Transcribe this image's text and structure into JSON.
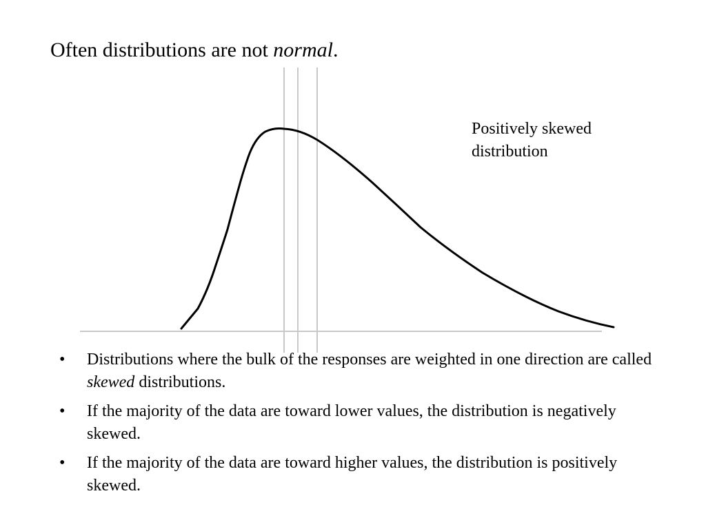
{
  "slide": {
    "title_main": "Often distributions are not ",
    "title_emphasis": "normal",
    "title_end": "."
  },
  "diagram": {
    "label_line1": "Positively skewed",
    "label_line2": "distribution",
    "line_color": "#c8c8c8",
    "curve_color": "#000000"
  },
  "bullets": [
    {
      "marker": "•",
      "pre": "Distributions where the bulk of the responses are weighted in one direction are called ",
      "emphasis": "skewed",
      "post": " distributions."
    },
    {
      "marker": "•",
      "text": "If the majority of the data are toward lower values, the distribution is negatively skewed."
    },
    {
      "marker": "•",
      "text": "If the majority of the data are toward higher values, the distribution is positively skewed."
    }
  ]
}
